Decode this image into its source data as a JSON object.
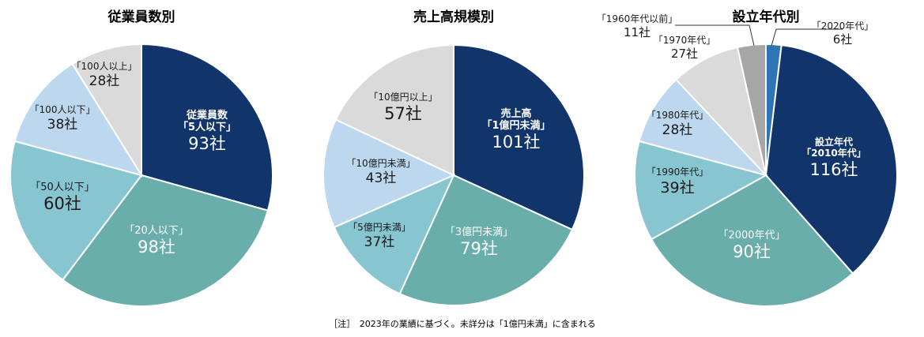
{
  "chart_data": [
    {
      "type": "pie",
      "title": "従業員数別",
      "slices": [
        {
          "label": "従業員数\n「5人以下」",
          "value": 93,
          "value_label": "93社",
          "color": "#11356a"
        },
        {
          "label": "「20人以下」",
          "value": 98,
          "value_label": "98社",
          "color": "#6aaeab"
        },
        {
          "label": "「50人以下」",
          "value": 60,
          "value_label": "60社",
          "color": "#87c5d1"
        },
        {
          "label": "「100人以下」",
          "value": 38,
          "value_label": "38社",
          "color": "#bdd7ee"
        },
        {
          "label": "「100人以上」",
          "value": 28,
          "value_label": "28社",
          "color": "#dadada"
        }
      ]
    },
    {
      "type": "pie",
      "title": "売上高規模別",
      "slices": [
        {
          "label": "売上高\n「1億円未満」",
          "value": 101,
          "value_label": "101社",
          "color": "#11356a"
        },
        {
          "label": "「3億円未満」",
          "value": 79,
          "value_label": "79社",
          "color": "#6aaeab"
        },
        {
          "label": "「5億円未満」",
          "value": 37,
          "value_label": "37社",
          "color": "#87c5d1"
        },
        {
          "label": "「10億円未満」",
          "value": 43,
          "value_label": "43社",
          "color": "#bdd7ee"
        },
        {
          "label": "「10億円以上」",
          "value": 57,
          "value_label": "57社",
          "color": "#dadada"
        }
      ]
    },
    {
      "type": "pie",
      "title": "設立年代別",
      "slices": [
        {
          "label": "「2020年代」",
          "value": 6,
          "value_label": "6社",
          "color": "#2e75b6"
        },
        {
          "label": "設立年代\n「2010年代」",
          "value": 116,
          "value_label": "116社",
          "color": "#11356a"
        },
        {
          "label": "「2000年代」",
          "value": 90,
          "value_label": "90社",
          "color": "#6aaeab"
        },
        {
          "label": "「1990年代」",
          "value": 39,
          "value_label": "39社",
          "color": "#87c5d1"
        },
        {
          "label": "「1980年代」",
          "value": 28,
          "value_label": "28社",
          "color": "#bdd7ee"
        },
        {
          "label": "「1970年代」",
          "value": 27,
          "value_label": "27社",
          "color": "#dadada"
        },
        {
          "label": "「1960年代以前」",
          "value": 11,
          "value_label": "11社",
          "color": "#a6a6a6"
        }
      ]
    }
  ],
  "footnote": "［注］　2023年の業績に基づく。未詳分は「1億円未満」に含まれる"
}
